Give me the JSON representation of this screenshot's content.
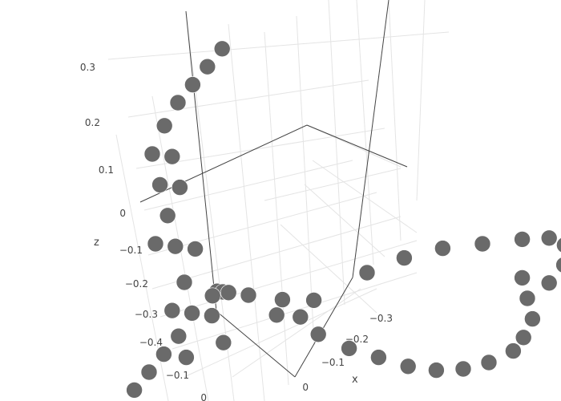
{
  "chart_data": {
    "type": "scatter3d",
    "title": "",
    "axes": {
      "x": {
        "label": "x",
        "ticks": [
          "−0.3",
          "−0.2",
          "−0.1",
          "0"
        ]
      },
      "y": {
        "label": "",
        "ticks": [
          "−0.1",
          "0"
        ]
      },
      "z": {
        "label": "z",
        "ticks": [
          "0.3",
          "0.2",
          "0.1",
          "0",
          "−0.1",
          "−0.2",
          "−0.3",
          "−0.4"
        ]
      }
    },
    "grid": true,
    "marker_color": "#6a6a6a",
    "series": [
      {
        "points": [
          [
            0.0,
            0.0,
            0.33
          ],
          [
            0.0,
            -0.01,
            0.32
          ],
          [
            0.0,
            -0.02,
            0.31
          ],
          [
            0.0,
            -0.03,
            0.3
          ],
          [
            0.0,
            -0.04,
            0.28
          ],
          [
            0.0,
            -0.05,
            0.25
          ],
          [
            0.0,
            -0.04,
            0.22
          ],
          [
            0.0,
            -0.05,
            0.19
          ],
          [
            0.0,
            -0.04,
            0.16
          ],
          [
            0.0,
            -0.05,
            0.13
          ],
          [
            0.0,
            -0.06,
            0.1
          ],
          [
            0.0,
            -0.05,
            0.07
          ],
          [
            0.0,
            -0.04,
            0.04
          ],
          [
            0.0,
            -0.05,
            0.0
          ],
          [
            0.0,
            -0.06,
            -0.03
          ],
          [
            0.0,
            -0.05,
            -0.06
          ],
          [
            0.0,
            -0.06,
            -0.08
          ],
          [
            0.0,
            -0.07,
            -0.09
          ],
          [
            0.0,
            -0.08,
            -0.1
          ],
          [
            0.0,
            -0.09,
            -0.11
          ],
          [
            -0.03,
            -0.08,
            -0.09
          ],
          [
            -0.06,
            -0.08,
            -0.08
          ],
          [
            -0.09,
            -0.07,
            -0.07
          ],
          [
            -0.12,
            -0.07,
            -0.06
          ],
          [
            -0.15,
            -0.06,
            -0.05
          ],
          [
            -0.18,
            -0.06,
            -0.04
          ],
          [
            -0.21,
            -0.06,
            -0.04
          ],
          [
            -0.24,
            -0.06,
            -0.05
          ],
          [
            -0.27,
            -0.06,
            -0.06
          ],
          [
            -0.29,
            -0.06,
            -0.07
          ],
          [
            -0.3,
            -0.06,
            -0.09
          ],
          [
            -0.31,
            -0.07,
            -0.11
          ],
          [
            -0.31,
            -0.08,
            -0.12
          ],
          [
            0.0,
            -0.04,
            -0.09
          ],
          [
            0.01,
            -0.03,
            -0.07
          ],
          [
            0.02,
            -0.02,
            -0.08
          ],
          [
            0.03,
            -0.01,
            -0.1
          ],
          [
            0.04,
            0.0,
            -0.12
          ],
          [
            0.04,
            0.01,
            -0.15
          ],
          [
            0.03,
            0.02,
            -0.19
          ],
          [
            0.02,
            0.02,
            -0.23
          ],
          [
            0.01,
            0.02,
            -0.27
          ],
          [
            -0.01,
            0.02,
            -0.31
          ],
          [
            -0.03,
            0.02,
            -0.34
          ],
          [
            -0.05,
            0.02,
            -0.37
          ],
          [
            -0.07,
            0.02,
            -0.39
          ],
          [
            -0.09,
            0.02,
            -0.4
          ],
          [
            -0.11,
            0.02,
            -0.4
          ],
          [
            -0.13,
            0.02,
            -0.39
          ],
          [
            -0.14,
            0.02,
            -0.37
          ],
          [
            -0.15,
            0.02,
            -0.34
          ],
          [
            -0.15,
            0.02,
            -0.3
          ],
          [
            -0.15,
            0.02,
            -0.26
          ]
        ]
      }
    ]
  }
}
